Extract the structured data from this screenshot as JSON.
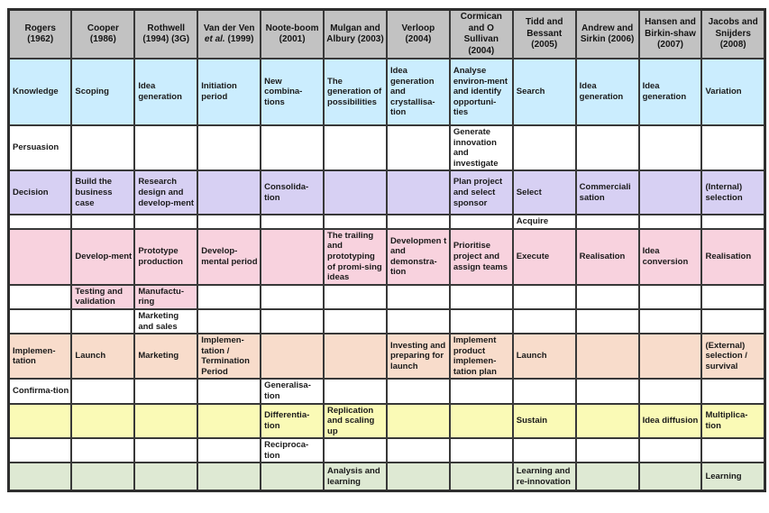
{
  "table": {
    "colors": {
      "header": "#C2C2C2",
      "blue": "#CBEDFE",
      "purple": "#D7D0F3",
      "pink": "#F8D2DE",
      "peach": "#F8DCCB",
      "yellow": "#FAFAB6",
      "green": "#DEE9D3",
      "white": "#FFFFFF",
      "border": "#383838",
      "text": "#1A1A1A"
    },
    "columns": [
      {
        "label": "Rogers (1962)"
      },
      {
        "label": "Cooper (1986)"
      },
      {
        "label": "Rothwell (1994) (3G)"
      },
      {
        "label": "Van der Ven et al. (1999)",
        "italic": "et al."
      },
      {
        "label": "Noote-boom (2001)"
      },
      {
        "label": "Mulgan and Albury (2003)"
      },
      {
        "label": "Verloop (2004)"
      },
      {
        "label": "Cormican and O Sullivan (2004)"
      },
      {
        "label": "Tidd and Bessant (2005)"
      },
      {
        "label": "Andrew and Sirkin (2006)"
      },
      {
        "label": "Hansen and Birkin-shaw (2007)"
      },
      {
        "label": "Jacobs and Snijders (2008)"
      }
    ],
    "rows": [
      {
        "bg": "blue",
        "cells": [
          "Knowledge",
          "Scoping",
          "Idea generation",
          "Initiation period",
          "New combina-tions",
          "The generation of possibilities",
          "Idea generation and crystallisa-tion",
          "Analyse environ-ment and identify opportuni-ties",
          "Search",
          "Idea generation",
          "Idea generation",
          "Variation"
        ]
      },
      {
        "bg": "white",
        "cells": [
          "Persuasion",
          "",
          "",
          "",
          "",
          "",
          "",
          "Generate innovation and investigate",
          "",
          "",
          "",
          ""
        ]
      },
      {
        "bg": "purple",
        "cells": [
          "Decision",
          "Build the business case",
          "Research design and develop-ment",
          "",
          "Consolida-tion",
          "",
          "",
          "Plan project and select sponsor",
          "Select",
          "Commerciali sation",
          "",
          "(Internal) selection"
        ]
      },
      {
        "bg": "white",
        "cells": [
          "",
          "",
          "",
          "",
          "",
          "",
          "",
          "",
          "Acquire",
          "",
          "",
          ""
        ]
      },
      {
        "bg": "pink",
        "cells": [
          "",
          "Develop-ment",
          "Prototype production",
          "Develop-mental period",
          "",
          "The trailing and prototyping of promi-sing ideas",
          "Developmen t and demonstra-tion",
          "Prioritise project and assign teams",
          "Execute",
          "Realisation",
          "Idea conversion",
          "Realisation"
        ]
      },
      {
        "bg": "white",
        "cell_bg": [
          null,
          "pink",
          "pink",
          null,
          null,
          null,
          null,
          null,
          null,
          null,
          null,
          null
        ],
        "cells": [
          "",
          "Testing and validation",
          "Manufactu-ring",
          "",
          "",
          "",
          "",
          "",
          "",
          "",
          "",
          ""
        ]
      },
      {
        "bg": "white",
        "cells": [
          "",
          "",
          "Marketing and sales",
          "",
          "",
          "",
          "",
          "",
          "",
          "",
          "",
          ""
        ]
      },
      {
        "bg": "peach",
        "cells": [
          "Implemen-tation",
          "Launch",
          "Marketing",
          "Implemen-tation / Termination Period",
          "",
          "",
          "Investing and preparing for launch",
          "Implement product implemen-tation plan",
          "Launch",
          "",
          "",
          "(External) selection / survival"
        ]
      },
      {
        "bg": "white",
        "cells": [
          "Confirma-tion",
          "",
          "",
          "",
          "Generalisa-tion",
          "",
          "",
          "",
          "",
          "",
          "",
          ""
        ]
      },
      {
        "bg": "yellow",
        "cells": [
          "",
          "",
          "",
          "",
          "Differentia-tion",
          "Replication and scaling up",
          "",
          "",
          "Sustain",
          "",
          "Idea diffusion",
          "Multiplica-tion"
        ]
      },
      {
        "bg": "white",
        "cells": [
          "",
          "",
          "",
          "",
          "Reciproca-tion",
          "",
          "",
          "",
          "",
          "",
          "",
          ""
        ]
      },
      {
        "bg": "green",
        "cells": [
          "",
          "",
          "",
          "",
          "",
          "Analysis and learning",
          "",
          "",
          "Learning and re-innovation",
          "",
          "",
          "Learning"
        ]
      }
    ]
  }
}
